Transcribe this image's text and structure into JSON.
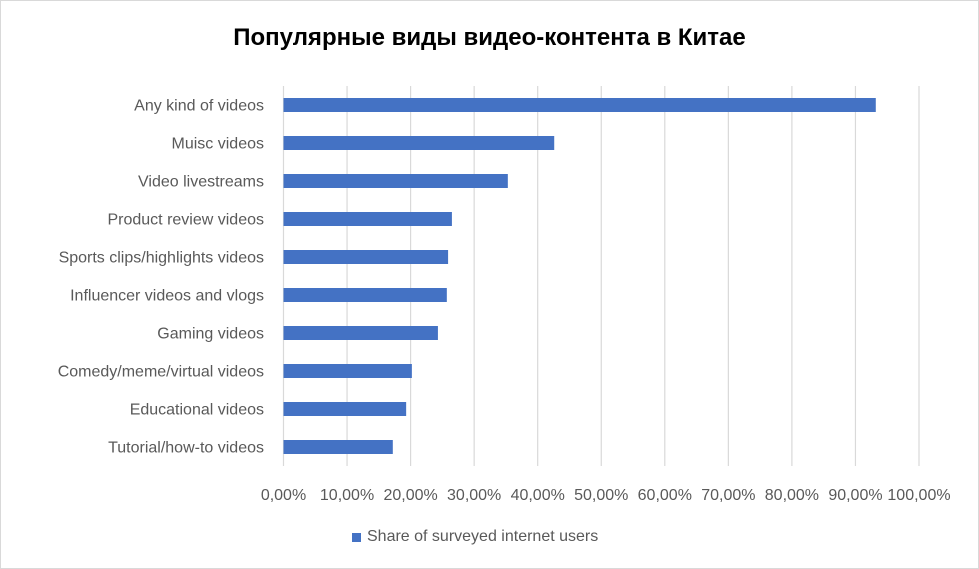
{
  "chart_data": {
    "type": "bar",
    "orientation": "horizontal",
    "title": "Популярные виды видео-контента в Китае",
    "categories": [
      "Any kind of videos",
      "Muisc videos",
      "Video livestreams",
      "Product review videos",
      "Sports clips/highlights videos",
      "Influencer videos and vlogs",
      "Gaming videos",
      "Comedy/meme/virtual videos",
      "Educational videos",
      "Tutorial/how-to videos"
    ],
    "series": [
      {
        "name": "Share of surveyed internet users",
        "values": [
          93.2,
          42.6,
          35.3,
          26.5,
          25.9,
          25.7,
          24.3,
          20.2,
          19.3,
          17.2
        ],
        "color": "#4472c4"
      }
    ],
    "xlim": [
      0,
      100
    ],
    "xticks": [
      "0,00%",
      "10,00%",
      "20,00%",
      "30,00%",
      "40,00%",
      "50,00%",
      "60,00%",
      "70,00%",
      "80,00%",
      "90,00%",
      "100,00%"
    ],
    "grid": true,
    "legend": "bottom"
  }
}
